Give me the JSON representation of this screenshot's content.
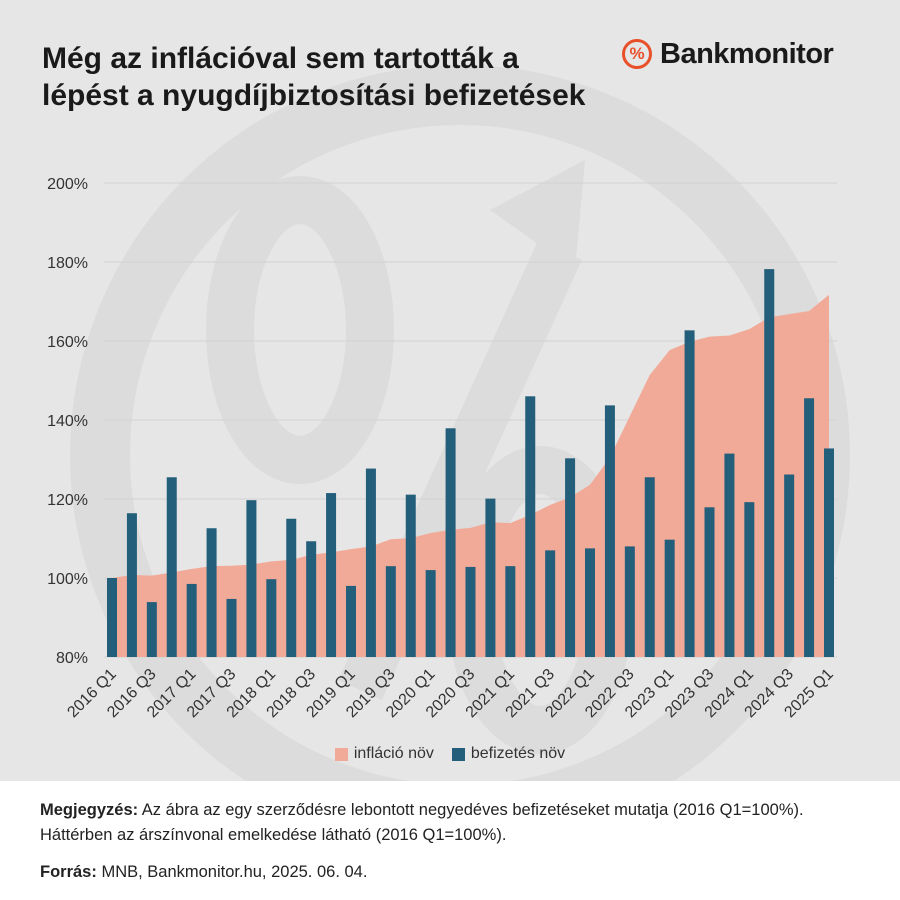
{
  "header": {
    "title": "Még az inflációval sem tartották a lépést a nyugdíjbiztosítási befizetések",
    "logo_symbol": "%",
    "logo_text": "Bankmonitor"
  },
  "colors": {
    "inflation": "#f2aa98",
    "payments": "#235e7b",
    "background": "#e6e6e6"
  },
  "chart_data": {
    "type": "bar",
    "ylim": [
      80,
      200
    ],
    "yticks": [
      "80%",
      "100%",
      "120%",
      "140%",
      "160%",
      "180%",
      "200%"
    ],
    "ytick_values": [
      80,
      100,
      120,
      140,
      160,
      180,
      200
    ],
    "xtick_labels": [
      "2016 Q1",
      "2016 Q3",
      "2017 Q1",
      "2017 Q3",
      "2018 Q1",
      "2018 Q3",
      "2019 Q1",
      "2019 Q3",
      "2020 Q1",
      "2020 Q3",
      "2021 Q1",
      "2021 Q3",
      "2022 Q1",
      "2022 Q3",
      "2023 Q1",
      "2023 Q3",
      "2024 Q1",
      "2024 Q3",
      "2025 Q1"
    ],
    "categories": [
      "2016 Q1",
      "2016 Q2",
      "2016 Q3",
      "2016 Q4",
      "2017 Q1",
      "2017 Q2",
      "2017 Q3",
      "2017 Q4",
      "2018 Q1",
      "2018 Q2",
      "2018 Q3",
      "2018 Q4",
      "2019 Q1",
      "2019 Q2",
      "2019 Q3",
      "2019 Q4",
      "2020 Q1",
      "2020 Q2",
      "2020 Q3",
      "2020 Q4",
      "2021 Q1",
      "2021 Q2",
      "2021 Q3",
      "2021 Q4",
      "2022 Q1",
      "2022 Q2",
      "2022 Q3",
      "2022 Q4",
      "2023 Q1",
      "2023 Q2",
      "2023 Q3",
      "2023 Q4",
      "2024 Q1",
      "2024 Q2",
      "2024 Q3",
      "2024 Q4",
      "2025 Q1"
    ],
    "series": [
      {
        "name": "infláció növ",
        "type": "area",
        "values": [
          100.0,
          100.8,
          100.6,
          101.4,
          102.3,
          103.0,
          103.1,
          103.4,
          104.2,
          104.6,
          105.9,
          106.5,
          107.3,
          108.0,
          109.8,
          110.1,
          111.4,
          112.2,
          112.7,
          114.1,
          113.9,
          116.0,
          118.5,
          120.4,
          123.6,
          130.5,
          141.0,
          151.4,
          157.7,
          159.8,
          161.1,
          161.4,
          163.0,
          166.0,
          166.8,
          167.6,
          171.7
        ]
      },
      {
        "name": "befizetés növ",
        "type": "bar",
        "values": [
          100.0,
          116.4,
          93.9,
          125.5,
          98.5,
          112.6,
          94.7,
          119.7,
          99.7,
          115.0,
          109.3,
          121.5,
          98.0,
          127.7,
          103.0,
          121.1,
          102.0,
          137.9,
          102.8,
          120.1,
          103.0,
          146.0,
          107.0,
          130.3,
          107.5,
          143.7,
          108.0,
          125.5,
          109.7,
          162.7,
          117.9,
          131.5,
          119.2,
          178.2,
          126.2,
          145.5,
          132.8
        ]
      }
    ]
  },
  "notes": {
    "note_label": "Megjegyzés:",
    "note_text": " Az ábra az egy szerződésre lebontott negyedéves befizetéseket mutatja (2016 Q1=100%). Háttérben az árszínvonal emelkedése látható (2016 Q1=100%).",
    "source_label": "Forrás:",
    "source_text": " MNB, Bankmonitor.hu, 2025. 06. 04."
  }
}
